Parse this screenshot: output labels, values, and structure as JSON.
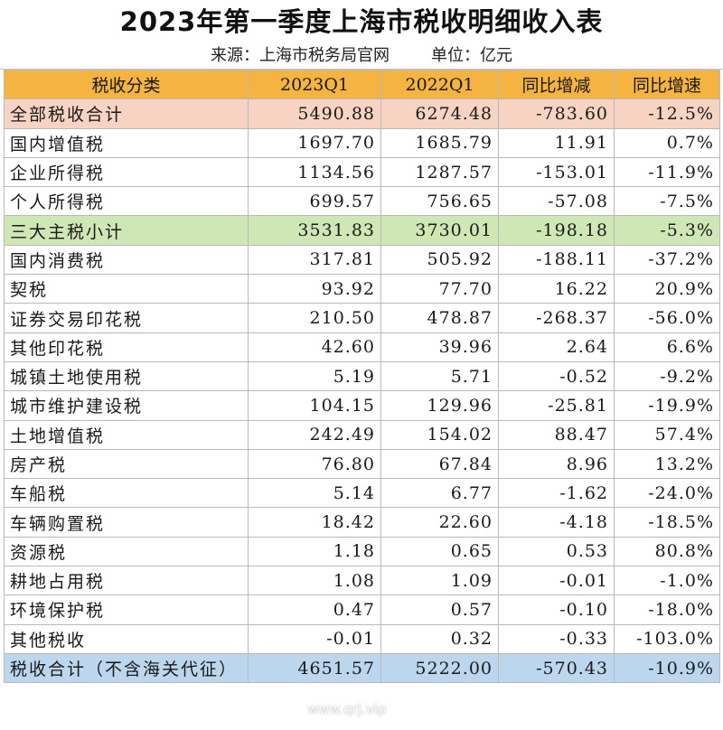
{
  "title": "2023年第一季度上海市税收明细收入表",
  "source_label": "来源：上海市税务局官网",
  "unit_label": "单位：亿元",
  "columns": [
    "税收分类",
    "2023Q1",
    "2022Q1",
    "同比增减",
    "同比增速"
  ],
  "rows": [
    {
      "name": "全部税收合计",
      "v2023": "5490.88",
      "v2022": "6274.48",
      "diff": "-783.60",
      "rate": "-12.5%",
      "highlight": "total"
    },
    {
      "name": "国内增值税",
      "v2023": "1697.70",
      "v2022": "1685.79",
      "diff": "11.91",
      "rate": "0.7%"
    },
    {
      "name": "企业所得税",
      "v2023": "1134.56",
      "v2022": "1287.57",
      "diff": "-153.01",
      "rate": "-11.9%"
    },
    {
      "name": "个人所得税",
      "v2023": "699.57",
      "v2022": "756.65",
      "diff": "-57.08",
      "rate": "-7.5%"
    },
    {
      "name": "三大主税小计",
      "v2023": "3531.83",
      "v2022": "3730.01",
      "diff": "-198.18",
      "rate": "-5.3%",
      "highlight": "sub"
    },
    {
      "name": "国内消费税",
      "v2023": "317.81",
      "v2022": "505.92",
      "diff": "-188.11",
      "rate": "-37.2%"
    },
    {
      "name": "契税",
      "v2023": "93.92",
      "v2022": "77.70",
      "diff": "16.22",
      "rate": "20.9%"
    },
    {
      "name": "证券交易印花税",
      "v2023": "210.50",
      "v2022": "478.87",
      "diff": "-268.37",
      "rate": "-56.0%"
    },
    {
      "name": "其他印花税",
      "v2023": "42.60",
      "v2022": "39.96",
      "diff": "2.64",
      "rate": "6.6%"
    },
    {
      "name": "城镇土地使用税",
      "v2023": "5.19",
      "v2022": "5.71",
      "diff": "-0.52",
      "rate": "-9.2%"
    },
    {
      "name": "城市维护建设税",
      "v2023": "104.15",
      "v2022": "129.96",
      "diff": "-25.81",
      "rate": "-19.9%"
    },
    {
      "name": "土地增值税",
      "v2023": "242.49",
      "v2022": "154.02",
      "diff": "88.47",
      "rate": "57.4%"
    },
    {
      "name": "房产税",
      "v2023": "76.80",
      "v2022": "67.84",
      "diff": "8.96",
      "rate": "13.2%"
    },
    {
      "name": "车船税",
      "v2023": "5.14",
      "v2022": "6.77",
      "diff": "-1.62",
      "rate": "-24.0%"
    },
    {
      "name": "车辆购置税",
      "v2023": "18.42",
      "v2022": "22.60",
      "diff": "-4.18",
      "rate": "-18.5%"
    },
    {
      "name": "资源税",
      "v2023": "1.18",
      "v2022": "0.65",
      "diff": "0.53",
      "rate": "80.8%"
    },
    {
      "name": "耕地占用税",
      "v2023": "1.08",
      "v2022": "1.09",
      "diff": "-0.01",
      "rate": "-1.0%"
    },
    {
      "name": "环境保护税",
      "v2023": "0.47",
      "v2022": "0.57",
      "diff": "-0.10",
      "rate": "-18.0%"
    },
    {
      "name": "其他税收",
      "v2023": "-0.01",
      "v2022": "0.32",
      "diff": "-0.33",
      "rate": "-103.0%"
    },
    {
      "name": "税收合计（不含海关代征）",
      "v2023": "4651.57",
      "v2022": "5222.00",
      "diff": "-570.43",
      "rate": "-10.9%",
      "highlight": "final"
    }
  ],
  "watermark": "www.qrj.vip",
  "colors": {
    "header_bg": "#f5b342",
    "total_row_bg": "#f7d3c3",
    "subtotal_row_bg": "#cfe6b5",
    "final_row_bg": "#bcd6ee"
  }
}
